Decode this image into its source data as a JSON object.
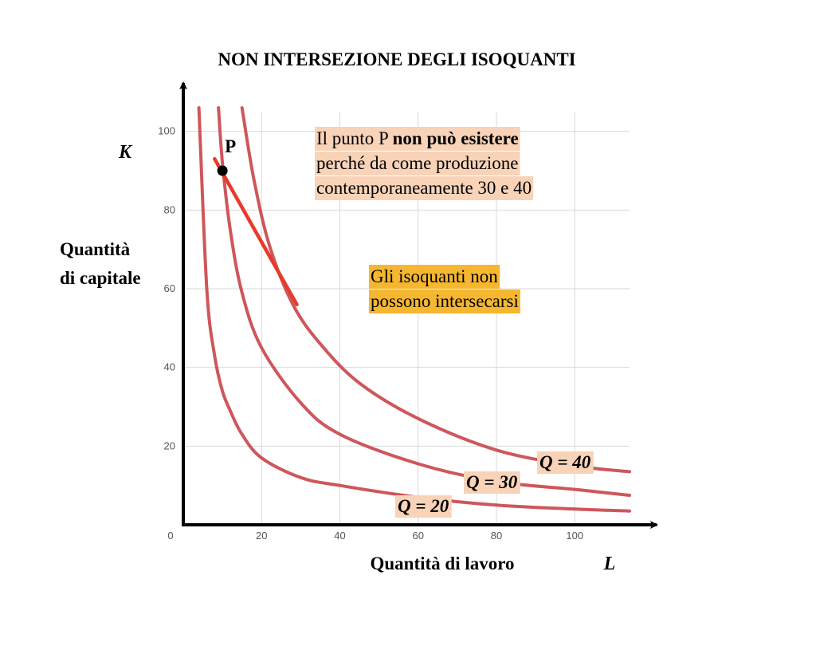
{
  "chart_data": {
    "type": "line",
    "title": "NON INTERSEZIONE DEGLI ISOQUANTI",
    "xlabel": "Quantità di lavoro",
    "ylabel_lines": [
      "Quantità",
      "di capitale"
    ],
    "x_axis_letter": "L",
    "y_axis_letter": "K",
    "xlim": [
      0,
      114
    ],
    "ylim": [
      0,
      105
    ],
    "x_ticks": [
      0,
      20,
      40,
      60,
      80,
      100
    ],
    "y_ticks": [
      20,
      40,
      60,
      80,
      100
    ],
    "grid": true,
    "series": [
      {
        "name": "Q = 20",
        "color": "#c9454a",
        "points": [
          [
            4,
            106
          ],
          [
            6,
            60
          ],
          [
            8,
            43
          ],
          [
            10,
            34
          ],
          [
            12,
            29
          ],
          [
            15,
            23
          ],
          [
            20,
            17
          ],
          [
            30,
            12
          ],
          [
            40,
            10
          ],
          [
            60,
            7
          ],
          [
            80,
            5
          ],
          [
            100,
            4
          ],
          [
            114,
            3.5
          ]
        ]
      },
      {
        "name": "Q = 30",
        "color": "#c9454a",
        "points": [
          [
            9,
            106
          ],
          [
            10,
            92
          ],
          [
            12,
            75
          ],
          [
            15,
            59
          ],
          [
            20,
            45
          ],
          [
            30,
            31
          ],
          [
            40,
            23
          ],
          [
            60,
            15.5
          ],
          [
            80,
            11
          ],
          [
            100,
            9
          ],
          [
            114,
            7.5
          ]
        ]
      },
      {
        "name": "Q = 40",
        "color": "#c9454a",
        "points": [
          [
            15,
            106
          ],
          [
            18,
            88
          ],
          [
            22,
            71
          ],
          [
            28,
            56
          ],
          [
            35,
            46
          ],
          [
            45,
            36
          ],
          [
            60,
            27
          ],
          [
            80,
            19
          ],
          [
            100,
            15
          ],
          [
            114,
            13.5
          ]
        ]
      }
    ],
    "segment": {
      "from": [
        8,
        93
      ],
      "to": [
        29,
        56
      ],
      "color": "#e83a2a"
    },
    "point": {
      "label": "P",
      "x": 10,
      "y": 90
    },
    "annotations": {
      "box1_lines": [
        [
          {
            "text": "Il punto P ",
            "bold": false
          },
          {
            "text": "non può esistere",
            "bold": true
          }
        ],
        [
          {
            "text": "perché da come produzione",
            "bold": false
          }
        ],
        [
          {
            "text": "contemporaneamente 30 e 40",
            "bold": false
          }
        ]
      ],
      "box1_color": "#f8d3b8",
      "box2_lines": [
        "Gli isoquanti non",
        "possono intersecarsi"
      ],
      "box2_color": "#f6b730",
      "q_labels": [
        "Q = 20",
        "Q = 30",
        "Q = 40"
      ],
      "q_label_color": "#f8d3b8"
    }
  }
}
